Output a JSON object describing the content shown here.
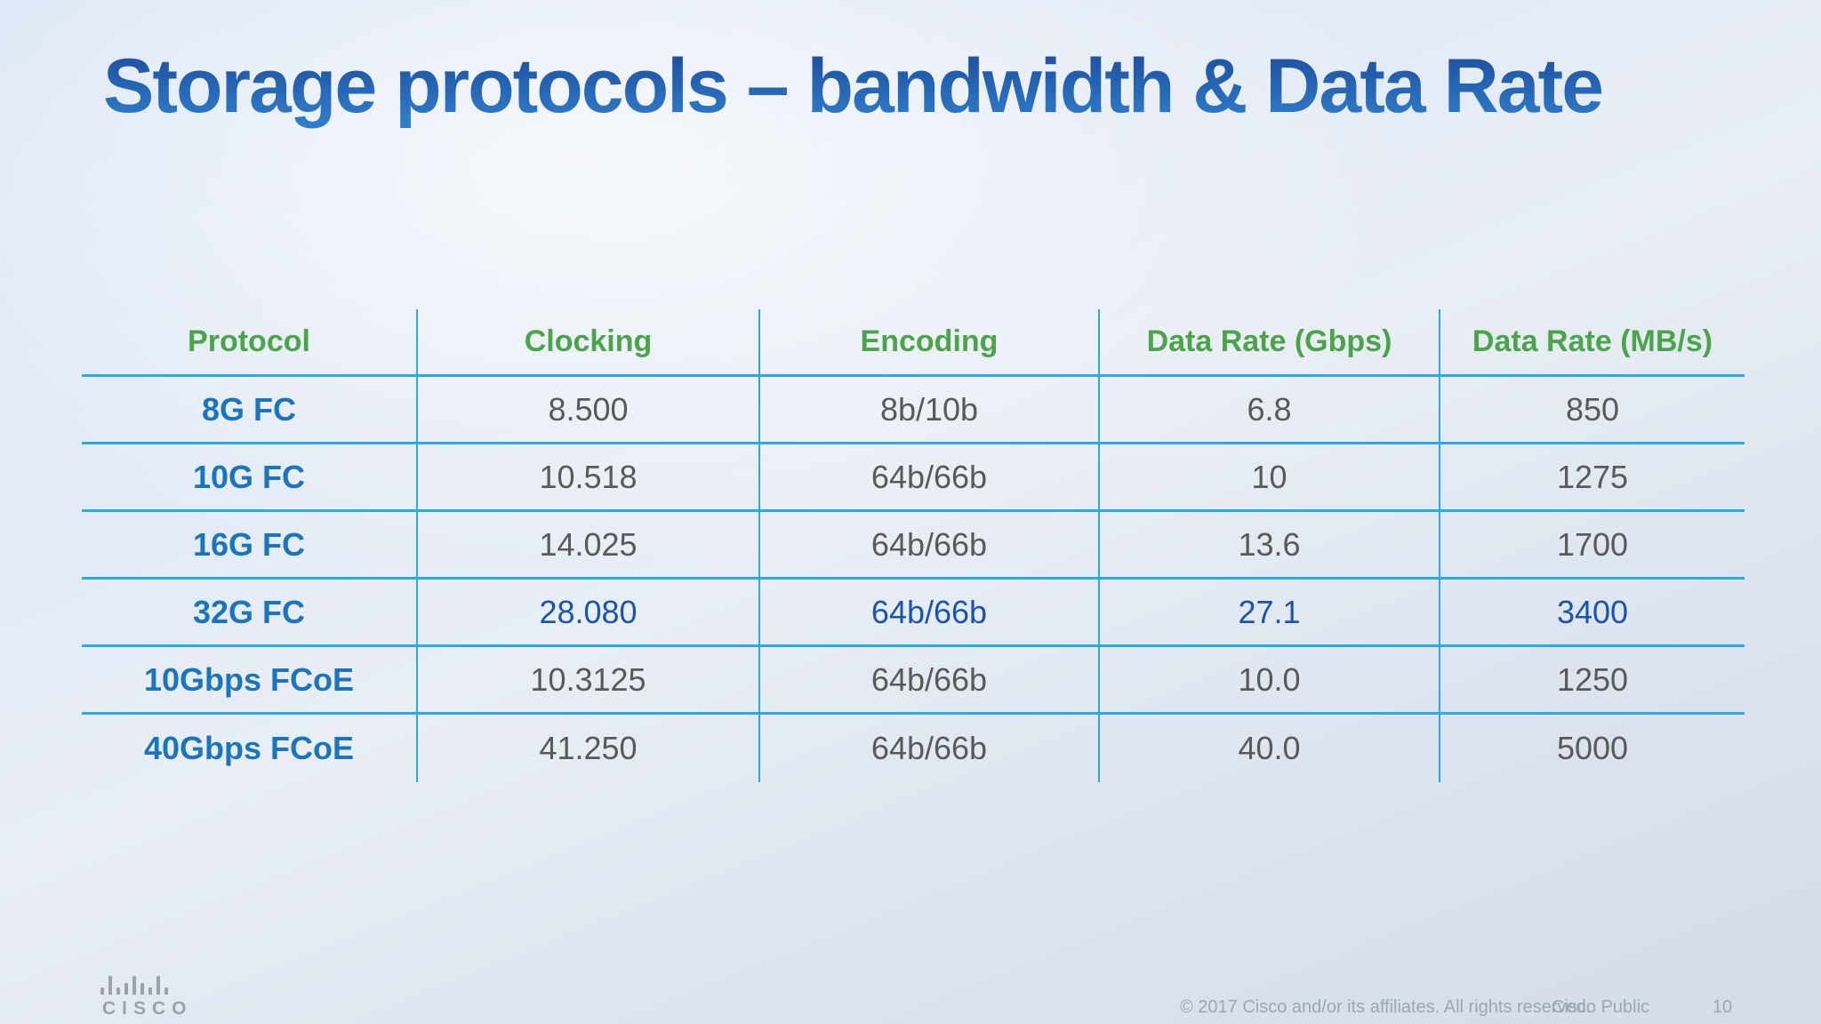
{
  "slide": {
    "title": "Storage protocols – bandwidth & Data Rate",
    "page_number": "10"
  },
  "table": {
    "columns": [
      "Protocol",
      "Clocking",
      "Encoding",
      "Data Rate (Gbps)",
      "Data Rate (MB/s)"
    ],
    "rows": [
      {
        "protocol": "8G FC",
        "clocking": "8.500",
        "encoding": "8b/10b",
        "gbps": "6.8",
        "mbs": "850",
        "highlighted": false
      },
      {
        "protocol": "10G FC",
        "clocking": "10.518",
        "encoding": "64b/66b",
        "gbps": "10",
        "mbs": "1275",
        "highlighted": false
      },
      {
        "protocol": "16G FC",
        "clocking": "14.025",
        "encoding": "64b/66b",
        "gbps": "13.6",
        "mbs": "1700",
        "highlighted": false
      },
      {
        "protocol": "32G FC",
        "clocking": "28.080",
        "encoding": "64b/66b",
        "gbps": "27.1",
        "mbs": "3400",
        "highlighted": true
      },
      {
        "protocol": "10Gbps FCoE",
        "clocking": "10.3125",
        "encoding": "64b/66b",
        "gbps": "10.0",
        "mbs": "1250",
        "highlighted": false
      },
      {
        "protocol": "40Gbps FCoE",
        "clocking": "41.250",
        "encoding": "64b/66b",
        "gbps": "40.0",
        "mbs": "5000",
        "highlighted": false
      }
    ]
  },
  "footer": {
    "copyright": "© 2017  Cisco and/or its affiliates. All rights reserved.",
    "classification": "Cisco Public",
    "logo_icon": "cisco-logo-icon",
    "logo_text": "cisco"
  },
  "colors": {
    "title_gradient_top": "#1d4f9e",
    "title_gradient_bottom": "#2f7cc9",
    "header_green": "#4aa54a",
    "protocol_blue": "#1b75bc",
    "highlight_blue": "#1a55a8",
    "value_gray": "#58595b",
    "grid_line_cyan": "#2ba9e0",
    "footer_gray": "#9aa7b5",
    "background_light": "#e9eef5"
  }
}
